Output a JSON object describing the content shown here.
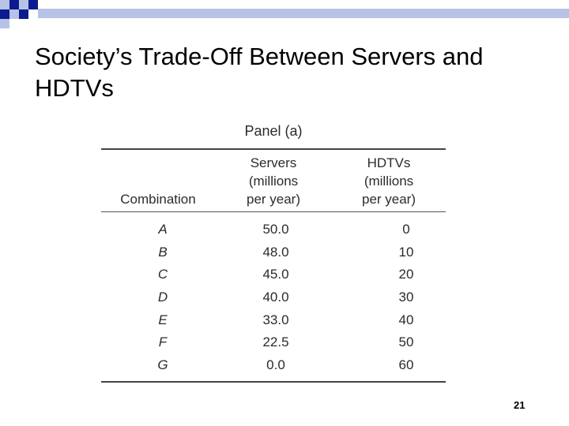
{
  "slide": {
    "title": "Society’s Trade-Off Between Servers and HDTVs",
    "page_number": "21"
  },
  "table": {
    "panel_title": "Panel (a)",
    "headers": {
      "combination": "Combination",
      "servers": "Servers\n(millions\nper year)",
      "hdtvs": "HDTVs\n(millions\nper year)"
    },
    "rows": [
      {
        "combination": "A",
        "servers": "50.0",
        "hdtvs": "0"
      },
      {
        "combination": "B",
        "servers": "48.0",
        "hdtvs": "10"
      },
      {
        "combination": "C",
        "servers": "45.0",
        "hdtvs": "20"
      },
      {
        "combination": "D",
        "servers": "40.0",
        "hdtvs": "30"
      },
      {
        "combination": "E",
        "servers": "33.0",
        "hdtvs": "40"
      },
      {
        "combination": "F",
        "servers": "22.5",
        "hdtvs": "50"
      },
      {
        "combination": "G",
        "servers": "0.0",
        "hdtvs": "60"
      }
    ]
  },
  "colors": {
    "accent_dark": "#0b1b8f",
    "accent_light": "#b7c3e6"
  }
}
